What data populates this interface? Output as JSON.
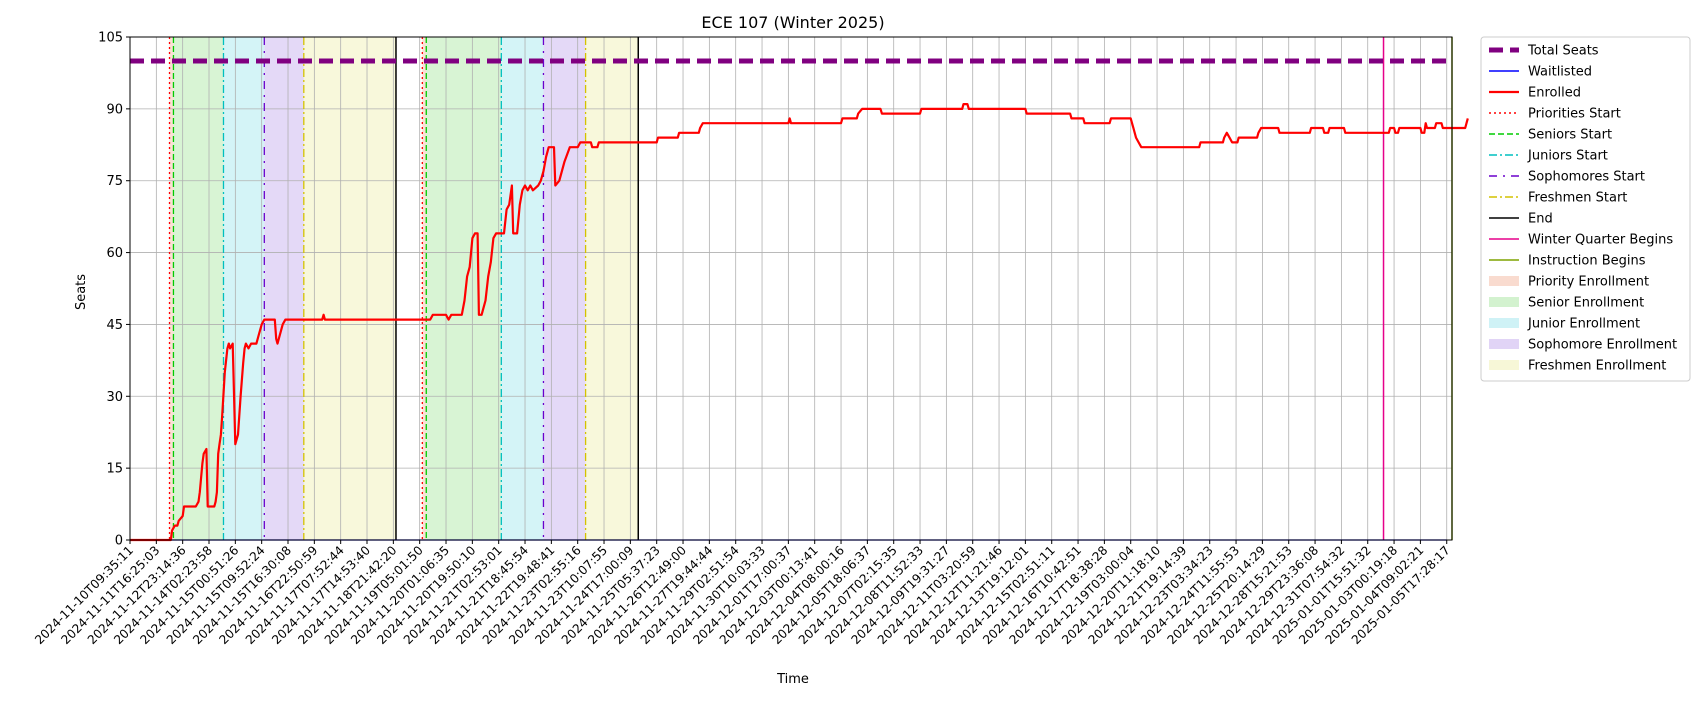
{
  "chart_data": {
    "type": "line",
    "title": "ECE 107 (Winter 2025)",
    "xlabel": "Time",
    "ylabel": "Seats",
    "ylim": [
      0,
      105
    ],
    "yticks": [
      0,
      15,
      30,
      45,
      60,
      75,
      90,
      105
    ],
    "x_axis": "datetime",
    "xlim": [
      "2024-11-10T09:35:11",
      "2025-01-06T10:00:00"
    ],
    "xticks": [
      "2024-11-10T09:35:11",
      "2024-11-11T16:25:03",
      "2024-11-12T23:14:36",
      "2024-11-14T02:23:58",
      "2024-11-15T00:51:26",
      "2024-11-15T09:52:24",
      "2024-11-15T16:30:08",
      "2024-11-16T22:50:59",
      "2024-11-17T07:52:44",
      "2024-11-17T14:53:40",
      "2024-11-18T21:42:20",
      "2024-11-19T05:01:50",
      "2024-11-20T01:06:35",
      "2024-11-20T19:50:10",
      "2024-11-21T02:53:01",
      "2024-11-21T18:45:54",
      "2024-11-22T19:48:41",
      "2024-11-23T02:55:16",
      "2024-11-23T10:07:55",
      "2024-11-24T17:00:09",
      "2024-11-25T05:37:23",
      "2024-11-26T12:49:00",
      "2024-11-27T19:44:44",
      "2024-11-29T02:51:54",
      "2024-11-30T10:03:33",
      "2024-12-01T17:00:37",
      "2024-12-03T00:13:41",
      "2024-12-04T08:00:16",
      "2024-12-05T18:06:37",
      "2024-12-07T02:15:35",
      "2024-12-08T11:52:33",
      "2024-12-09T19:31:27",
      "2024-12-11T03:20:59",
      "2024-12-12T11:21:46",
      "2024-12-13T19:12:01",
      "2024-12-15T02:51:11",
      "2024-12-16T10:42:51",
      "2024-12-17T18:38:28",
      "2024-12-19T03:00:04",
      "2024-12-20T11:18:10",
      "2024-12-21T19:14:39",
      "2024-12-23T03:34:23",
      "2024-12-24T11:55:53",
      "2024-12-25T20:14:29",
      "2024-12-28T15:21:53",
      "2024-12-29T23:36:08",
      "2024-12-31T07:54:32",
      "2025-01-01T15:51:32",
      "2025-01-03T00:19:18",
      "2025-01-04T09:02:21",
      "2025-01-05T17:28:17"
    ],
    "grid": true,
    "legend_placement": "outside-right",
    "series": [
      {
        "name": "Total Seats",
        "color": "#800080",
        "style": "dashed-thick",
        "values": [
          [
            0,
            100
          ],
          [
            50,
            100
          ]
        ]
      },
      {
        "name": "Waitlisted",
        "color": "#0000ff",
        "style": "solid",
        "values": [
          [
            0,
            0
          ],
          [
            50,
            0
          ]
        ]
      },
      {
        "name": "Enrolled",
        "color": "#ff0000",
        "style": "solid-thick",
        "values": [
          [
            0,
            0
          ],
          [
            1.55,
            0
          ],
          [
            1.6,
            2
          ],
          [
            1.7,
            3
          ],
          [
            1.8,
            3
          ],
          [
            1.85,
            4
          ],
          [
            2.0,
            5
          ],
          [
            2.05,
            7
          ],
          [
            2.5,
            7
          ],
          [
            2.6,
            8
          ],
          [
            2.65,
            10
          ],
          [
            2.7,
            13
          ],
          [
            2.75,
            16
          ],
          [
            2.8,
            18
          ],
          [
            2.9,
            19
          ],
          [
            2.95,
            7
          ],
          [
            3.2,
            7
          ],
          [
            3.25,
            8
          ],
          [
            3.3,
            10
          ],
          [
            3.35,
            18
          ],
          [
            3.4,
            20
          ],
          [
            3.45,
            22
          ],
          [
            3.5,
            26
          ],
          [
            3.6,
            35
          ],
          [
            3.7,
            40
          ],
          [
            3.75,
            41
          ],
          [
            3.8,
            40
          ],
          [
            3.9,
            41
          ],
          [
            4.0,
            20
          ],
          [
            4.1,
            22
          ],
          [
            4.2,
            30
          ],
          [
            4.3,
            37
          ],
          [
            4.35,
            40
          ],
          [
            4.4,
            41
          ],
          [
            4.5,
            40
          ],
          [
            4.6,
            41
          ],
          [
            4.8,
            41
          ],
          [
            4.9,
            43
          ],
          [
            5.0,
            45
          ],
          [
            5.1,
            46
          ],
          [
            5.5,
            46
          ],
          [
            5.55,
            42
          ],
          [
            5.6,
            41
          ],
          [
            5.7,
            43
          ],
          [
            5.8,
            45
          ],
          [
            5.9,
            46
          ],
          [
            7.3,
            46
          ],
          [
            7.35,
            47
          ],
          [
            7.4,
            46
          ],
          [
            11.4,
            46
          ],
          [
            11.5,
            47
          ],
          [
            12.0,
            47
          ],
          [
            12.1,
            46
          ],
          [
            12.2,
            47
          ],
          [
            12.6,
            47
          ],
          [
            12.7,
            50
          ],
          [
            12.8,
            55
          ],
          [
            12.9,
            57
          ],
          [
            13.0,
            63
          ],
          [
            13.1,
            64
          ],
          [
            13.2,
            64
          ],
          [
            13.25,
            47
          ],
          [
            13.35,
            47
          ],
          [
            13.4,
            48
          ],
          [
            13.5,
            50
          ],
          [
            13.6,
            55
          ],
          [
            13.7,
            58
          ],
          [
            13.8,
            63
          ],
          [
            13.9,
            64
          ],
          [
            14.2,
            64
          ],
          [
            14.3,
            69
          ],
          [
            14.4,
            70
          ],
          [
            14.5,
            74
          ],
          [
            14.55,
            64
          ],
          [
            14.7,
            64
          ],
          [
            14.8,
            70
          ],
          [
            14.9,
            73
          ],
          [
            15.0,
            74
          ],
          [
            15.1,
            73
          ],
          [
            15.2,
            74
          ],
          [
            15.3,
            73
          ],
          [
            15.5,
            74
          ],
          [
            15.6,
            75
          ],
          [
            15.7,
            77
          ],
          [
            15.8,
            80
          ],
          [
            15.9,
            82
          ],
          [
            16.1,
            82
          ],
          [
            16.15,
            74
          ],
          [
            16.3,
            75
          ],
          [
            16.5,
            79
          ],
          [
            16.7,
            82
          ],
          [
            17.0,
            82
          ],
          [
            17.1,
            83
          ],
          [
            17.5,
            83
          ],
          [
            17.55,
            82
          ],
          [
            17.75,
            82
          ],
          [
            17.8,
            83
          ],
          [
            20.0,
            83
          ],
          [
            20.05,
            84
          ],
          [
            20.8,
            84
          ],
          [
            20.85,
            85
          ],
          [
            21.6,
            85
          ],
          [
            21.65,
            86
          ],
          [
            21.75,
            87
          ],
          [
            25.0,
            87
          ],
          [
            25.05,
            88
          ],
          [
            25.1,
            87
          ],
          [
            27.0,
            87
          ],
          [
            27.05,
            88
          ],
          [
            27.6,
            88
          ],
          [
            27.65,
            89
          ],
          [
            27.8,
            90
          ],
          [
            28.5,
            90
          ],
          [
            28.55,
            89
          ],
          [
            30.0,
            89
          ],
          [
            30.05,
            90
          ],
          [
            31.6,
            90
          ],
          [
            31.65,
            91
          ],
          [
            31.8,
            91
          ],
          [
            31.85,
            90
          ],
          [
            34.0,
            90
          ],
          [
            34.05,
            89
          ],
          [
            35.7,
            89
          ],
          [
            35.75,
            88
          ],
          [
            36.2,
            88
          ],
          [
            36.25,
            87
          ],
          [
            37.2,
            87
          ],
          [
            37.25,
            88
          ],
          [
            38.0,
            88
          ],
          [
            38.1,
            86
          ],
          [
            38.2,
            84
          ],
          [
            38.3,
            83
          ],
          [
            38.4,
            82
          ],
          [
            40.6,
            82
          ],
          [
            40.65,
            83
          ],
          [
            41.5,
            83
          ],
          [
            41.55,
            84
          ],
          [
            41.65,
            85
          ],
          [
            41.75,
            84
          ],
          [
            41.85,
            83
          ],
          [
            42.05,
            83
          ],
          [
            42.1,
            84
          ],
          [
            42.8,
            84
          ],
          [
            42.85,
            85
          ],
          [
            42.95,
            86
          ],
          [
            43.6,
            86
          ],
          [
            43.65,
            85
          ],
          [
            44.8,
            85
          ],
          [
            44.85,
            86
          ],
          [
            45.3,
            86
          ],
          [
            45.35,
            85
          ],
          [
            45.5,
            85
          ],
          [
            45.55,
            86
          ],
          [
            46.1,
            86
          ],
          [
            46.15,
            85
          ],
          [
            47.8,
            85
          ],
          [
            47.85,
            86
          ],
          [
            48.0,
            86
          ],
          [
            48.05,
            85
          ],
          [
            48.15,
            85
          ],
          [
            48.2,
            86
          ],
          [
            49.0,
            86
          ],
          [
            49.05,
            85
          ],
          [
            49.15,
            85
          ],
          [
            49.2,
            87
          ],
          [
            49.25,
            86
          ],
          [
            49.55,
            86
          ],
          [
            49.6,
            87
          ],
          [
            49.8,
            87
          ],
          [
            49.85,
            86
          ],
          [
            50.7,
            86
          ],
          [
            50.75,
            87
          ],
          [
            50.8,
            88
          ]
        ]
      }
    ],
    "event_lines": [
      {
        "name": "Priorities Start",
        "color": "#ff0000",
        "style": "dotted",
        "x": [
          1.5,
          11.1
        ]
      },
      {
        "name": "Seniors Start",
        "color": "#00cc00",
        "style": "dashed",
        "x": [
          1.65,
          11.25
        ]
      },
      {
        "name": "Juniors Start",
        "color": "#00bfbf",
        "style": "dashdot",
        "x": [
          3.55,
          14.1
        ]
      },
      {
        "name": "Sophomores Start",
        "color": "#6a00cc",
        "style": "dashdot-loose",
        "x": [
          5.1,
          15.7
        ]
      },
      {
        "name": "Freshmen Start",
        "color": "#d4c200",
        "style": "dashdot",
        "x": [
          6.6,
          17.3
        ]
      },
      {
        "name": "End",
        "color": "#000000",
        "style": "solid",
        "x": [
          10.1,
          19.3
        ]
      },
      {
        "name": "Winter Quarter Begins",
        "color": "#e6008a",
        "style": "solid",
        "x": [
          47.6
        ]
      },
      {
        "name": "Instruction Begins",
        "color": "#7fa300",
        "style": "solid",
        "x": [
          50.2
        ]
      }
    ],
    "shaded_regions": [
      {
        "name": "Priority Enrollment",
        "color": "#f4b8a0",
        "spans": [
          [
            1.5,
            1.65
          ],
          [
            11.1,
            11.25
          ]
        ]
      },
      {
        "name": "Senior Enrollment",
        "color": "#a8e6a0",
        "spans": [
          [
            1.65,
            3.55
          ],
          [
            11.25,
            14.1
          ]
        ]
      },
      {
        "name": "Junior Enrollment",
        "color": "#a0e6ee",
        "spans": [
          [
            3.55,
            5.1
          ],
          [
            14.1,
            15.7
          ]
        ]
      },
      {
        "name": "Sophomore Enrollment",
        "color": "#c4aaee",
        "spans": [
          [
            5.1,
            6.6
          ],
          [
            15.7,
            17.3
          ]
        ]
      },
      {
        "name": "Freshmen Enrollment",
        "color": "#f0f0b0",
        "spans": [
          [
            6.6,
            10.1
          ],
          [
            17.3,
            19.3
          ]
        ]
      }
    ]
  }
}
